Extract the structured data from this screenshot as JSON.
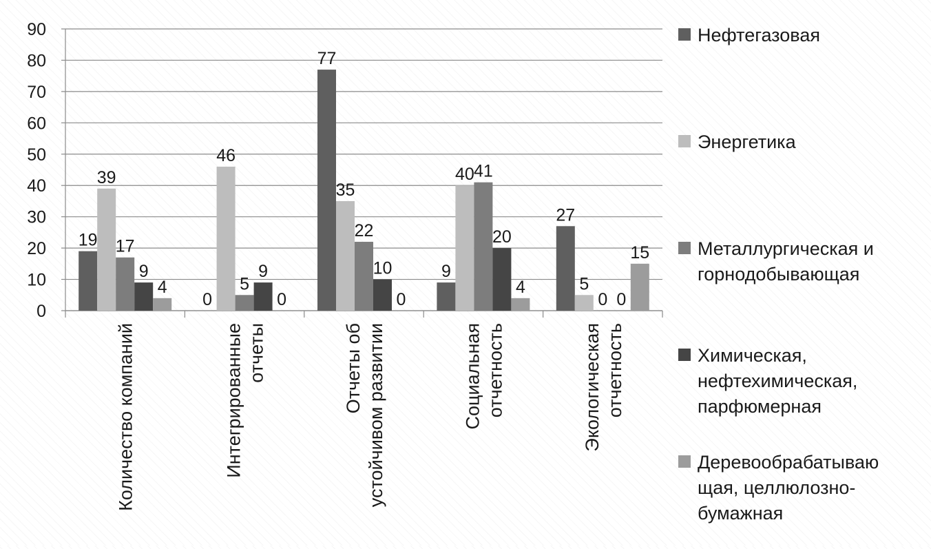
{
  "chart_data": {
    "type": "bar",
    "title": "",
    "xlabel": "",
    "ylabel": "",
    "ylim": [
      0,
      90
    ],
    "yticks": [
      0,
      10,
      20,
      30,
      40,
      50,
      60,
      70,
      80,
      90
    ],
    "grid": true,
    "legend_position": "right",
    "categories": [
      [
        "Количество компаний"
      ],
      [
        "Интегрированные",
        "отчеты"
      ],
      [
        "Отчеты об",
        "устойчивом развитии"
      ],
      [
        "Социальная",
        "отчетность"
      ],
      [
        "Экологическая",
        "отчетность"
      ]
    ],
    "series": [
      {
        "name": [
          "Нефтегазовая"
        ],
        "color": "#5f5f5f",
        "values": [
          19,
          0,
          77,
          9,
          27
        ]
      },
      {
        "name": [
          "Энергетика"
        ],
        "color": "#bdbdbd",
        "values": [
          39,
          46,
          35,
          40,
          5
        ]
      },
      {
        "name": [
          "Металлургическая и",
          "горнодобывающая"
        ],
        "color": "#7d7d7d",
        "values": [
          17,
          5,
          22,
          41,
          0
        ]
      },
      {
        "name": [
          "Химическая,",
          "нефтехимическая,",
          "парфюмерная"
        ],
        "color": "#454545",
        "values": [
          9,
          9,
          10,
          20,
          0
        ]
      },
      {
        "name": [
          "Деревообрабатываю",
          "щая, целлюлозно-",
          "бумажная"
        ],
        "color": "#9c9c9c",
        "values": [
          4,
          0,
          0,
          4,
          15
        ]
      }
    ]
  }
}
